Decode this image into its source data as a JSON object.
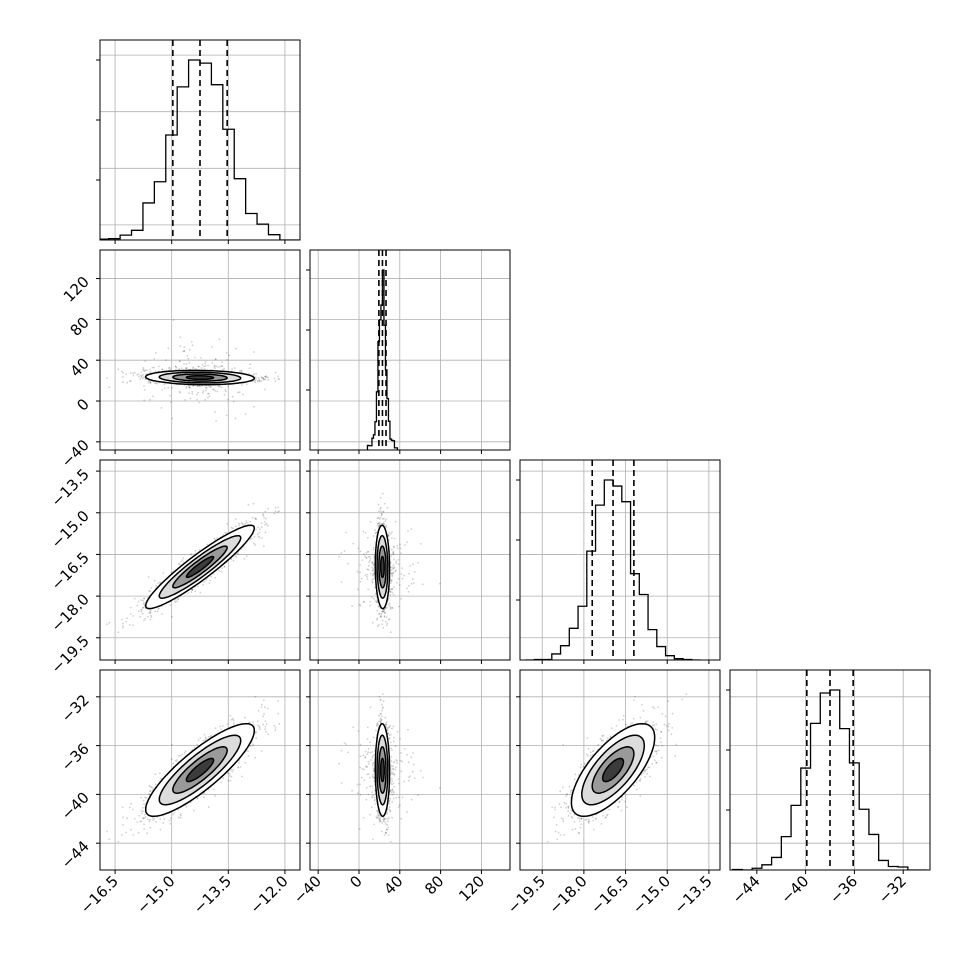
{
  "chart_data": {
    "type": "corner",
    "title": "",
    "grid": true,
    "colors": {
      "primary": "#000000",
      "grid": "#b0b0b0",
      "background": "#ffffff"
    },
    "quantiles": [
      0.16,
      0.5,
      0.84
    ],
    "parameters": [
      {
        "label": "",
        "range": [
          -16.9,
          -11.6
        ],
        "ticks": [
          -16.5,
          -15.0,
          -13.5,
          -12.0
        ],
        "tick_labels": [
          "−16.5",
          "−15.0",
          "−13.5",
          "−12.0"
        ],
        "mean": -14.25,
        "sigma": 0.72,
        "quantile_values": [
          -14.97,
          -14.25,
          -13.53
        ]
      },
      {
        "label": "",
        "range": [
          -48,
          148
        ],
        "ticks": [
          -40,
          0,
          40,
          80,
          120
        ],
        "tick_labels": [
          "−40",
          "0",
          "40",
          "80",
          "120"
        ],
        "mean": 23,
        "sigma": 3.5,
        "quantile_values": [
          19.5,
          23,
          26.5
        ]
      },
      {
        "label": "",
        "range": [
          -20.3,
          -13.1
        ],
        "ticks": [
          -19.5,
          -18.0,
          -16.5,
          -15.0,
          -13.5
        ],
        "tick_labels": [
          "−19.5",
          "−18.0",
          "−16.5",
          "−15.0",
          "−13.5"
        ],
        "mean": -16.95,
        "sigma": 0.75,
        "quantile_values": [
          -17.7,
          -16.95,
          -16.2
        ]
      },
      {
        "label": "",
        "range": [
          -46.2,
          -29.8
        ],
        "ticks": [
          -44,
          -40,
          -36,
          -32
        ],
        "tick_labels": [
          "−44",
          "−40",
          "−36",
          "−32"
        ],
        "mean": -38.0,
        "sigma": 1.9,
        "quantile_values": [
          -39.9,
          -38.0,
          -36.1
        ]
      }
    ],
    "correlations": [
      {
        "i": 1,
        "j": 0,
        "rho": -0.1
      },
      {
        "i": 2,
        "j": 0,
        "rho": 0.93
      },
      {
        "i": 2,
        "j": 1,
        "rho": -0.05
      },
      {
        "i": 3,
        "j": 0,
        "rho": 0.85
      },
      {
        "i": 3,
        "j": 1,
        "rho": -0.03
      },
      {
        "i": 3,
        "j": 2,
        "rho": 0.7
      }
    ],
    "contour_levels": [
      0.5,
      1.0,
      1.5,
      2.0
    ],
    "histogram_bins": 20,
    "n_samples": 2500
  }
}
